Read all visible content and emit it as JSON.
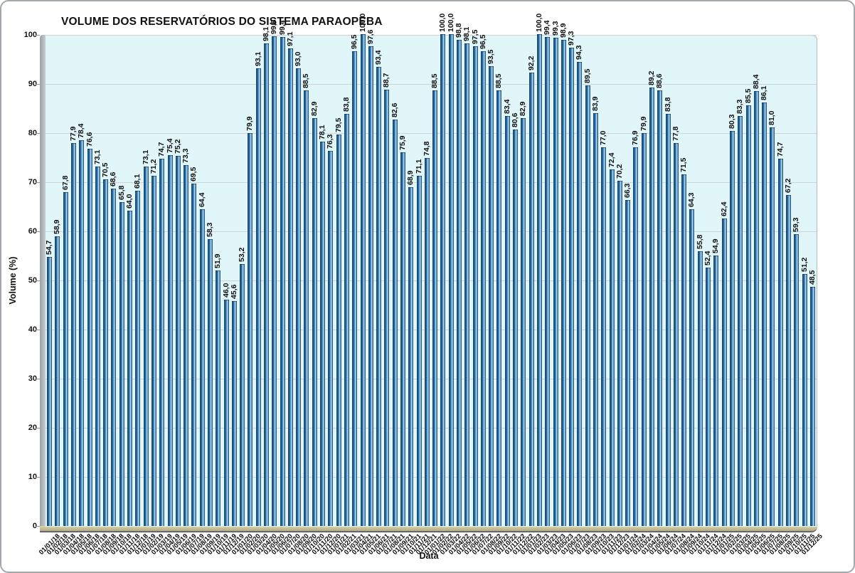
{
  "page": {
    "background": "#ffffff",
    "frame_border_color": "#a2a7ab"
  },
  "chart_data": {
    "type": "bar",
    "title": "VOLUME DOS RESERVATÓRIOS DO SISTEMA PARAOPEBA",
    "xlabel": "Data",
    "ylabel": "Volume (%)",
    "ylim": [
      0,
      100
    ],
    "yticks": [
      0,
      10,
      20,
      30,
      40,
      50,
      60,
      70,
      80,
      90,
      100
    ],
    "grid": true,
    "legend": false,
    "value_labels_rotated": true,
    "categories": [
      "01/01/18",
      "01/02/18",
      "01/03/18",
      "01/04/18",
      "01/05/18",
      "01/06/18",
      "01/07/18",
      "01/08/18",
      "01/09/18",
      "01/10/18",
      "01/11/18",
      "01/12/18",
      "01/01/19",
      "01/02/19",
      "01/03/19",
      "01/04/19",
      "01/05/19",
      "01/06/19",
      "01/07/19",
      "01/08/19",
      "01/09/19",
      "01/10/19",
      "01/11/19",
      "01/12/19",
      "01/01/20",
      "01/02/20",
      "01/03/20",
      "01/04/20",
      "01/05/20",
      "01/06/20",
      "01/07/20",
      "01/08/20",
      "01/09/20",
      "01/10/20",
      "01/11/20",
      "01/12/20",
      "01/01/21",
      "01/02/21",
      "01/03/21",
      "01/04/21",
      "01/05/21",
      "01/06/21",
      "01/07/21",
      "01/08/21",
      "01/09/21",
      "01/10/21",
      "01/11/21",
      "01/12/21",
      "01/01/22",
      "01/02/22",
      "01/03/22",
      "01/04/22",
      "01/05/22",
      "01/06/22",
      "01/07/22",
      "01/08/22",
      "01/09/22",
      "01/10/22",
      "01/11/22",
      "01/12/22",
      "01/01/23",
      "01/02/23",
      "01/03/23",
      "01/04/23",
      "01/05/23",
      "01/06/23",
      "01/07/23",
      "01/08/23",
      "01/09/23",
      "01/10/23",
      "01/11/23",
      "01/12/23",
      "01/01/24",
      "01/02/24",
      "01/03/24",
      "01/04/24",
      "01/05/24",
      "01/06/24",
      "01/07/24",
      "01/08/24",
      "01/09/24",
      "01/10/24",
      "01/11/24",
      "01/12/24",
      "01/01/25",
      "01/02/25",
      "01/03/25",
      "01/04/25",
      "01/05/25",
      "01/06/25",
      "01/07/25",
      "01/08/25",
      "01/09/25",
      "01/10/25",
      "01/11/25",
      "01/12/25"
    ],
    "values": [
      54.7,
      58.9,
      67.8,
      77.9,
      78.4,
      76.6,
      73.1,
      70.5,
      68.6,
      65.8,
      64.0,
      68.1,
      73.1,
      71.2,
      74.7,
      75.4,
      75.2,
      73.3,
      69.5,
      64.4,
      58.3,
      51.9,
      46.0,
      45.6,
      53.2,
      79.9,
      93.1,
      98.1,
      99.6,
      99.4,
      97.1,
      93.0,
      88.5,
      82.9,
      78.1,
      76.3,
      79.5,
      83.8,
      96.5,
      100.0,
      97.6,
      93.4,
      88.7,
      82.6,
      75.9,
      68.9,
      71.1,
      74.8,
      88.5,
      100.0,
      100.0,
      98.8,
      98.1,
      97.5,
      96.5,
      93.5,
      88.5,
      83.4,
      80.6,
      82.9,
      92.2,
      100.0,
      99.4,
      99.3,
      98.9,
      97.3,
      94.3,
      89.5,
      83.9,
      77.0,
      72.4,
      70.2,
      66.3,
      76.9,
      79.9,
      89.2,
      88.6,
      83.8,
      77.8,
      71.5,
      64.3,
      55.8,
      52.4,
      54.9,
      62.4,
      80.3,
      83.3,
      85.5,
      88.4,
      86.1,
      81.0,
      74.7,
      67.2,
      59.3,
      51.2,
      48.5
    ],
    "value_labels": [
      "54,7",
      "58,9",
      "67,8",
      "77,9",
      "78,4",
      "76,6",
      "73,1",
      "70,5",
      "68,6",
      "65,8",
      "64,0",
      "68,1",
      "73,1",
      "71,2",
      "74,7",
      "75,4",
      "75,2",
      "73,3",
      "69,5",
      "64,4",
      "58,3",
      "51,9",
      "46,0",
      "45,6",
      "53,2",
      "79,9",
      "93,1",
      "98,1",
      "99,6",
      "99,4",
      "97,1",
      "93,0",
      "88,5",
      "82,9",
      "78,1",
      "76,3",
      "79,5",
      "83,8",
      "96,5",
      "100,0",
      "97,6",
      "93,4",
      "88,7",
      "82,6",
      "75,9",
      "68,9",
      "71,1",
      "74,8",
      "88,5",
      "100,0",
      "100,0",
      "98,8",
      "98,1",
      "97,5",
      "96,5",
      "93,5",
      "88,5",
      "83,4",
      "80,6",
      "82,9",
      "92,2",
      "100,0",
      "99,4",
      "99,3",
      "98,9",
      "97,3",
      "94,3",
      "89,5",
      "83,9",
      "77,0",
      "72,4",
      "70,2",
      "66,3",
      "76,9",
      "79,9",
      "89,2",
      "88,6",
      "83,8",
      "77,8",
      "71,5",
      "64,3",
      "55,8",
      "52,4",
      "54,9",
      "62,4",
      "80,3",
      "83,3",
      "85,5",
      "88,4",
      "86,1",
      "81,0",
      "74,7",
      "67,2",
      "59,3",
      "51,2",
      "48,5"
    ],
    "colors": {
      "bar_main": "#2e75b0",
      "bar_dark_edge": "#163f63",
      "bar_highlight": "#d9ecf6",
      "plot_background": "#e1f6f9",
      "gridline": "#ccd4d4",
      "floor": "#c4bd92",
      "wall": "#aab1b3",
      "text": "#111111"
    }
  }
}
